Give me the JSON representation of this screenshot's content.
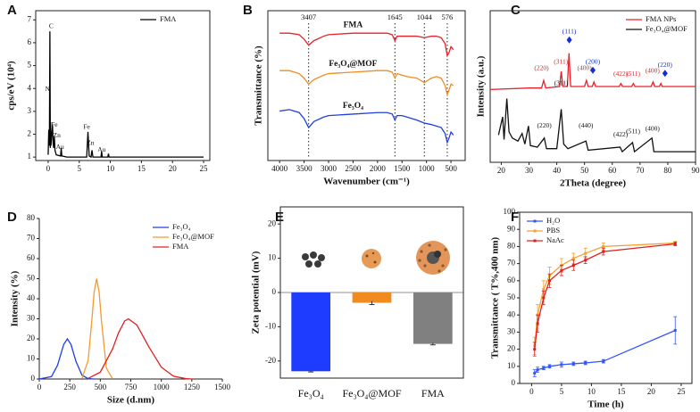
{
  "chart_data": [
    {
      "panel": "A",
      "type": "line",
      "ylabel": "cps/eV (10⁴)",
      "xlim": [
        -2,
        26
      ],
      "ylim": [
        0.85,
        7.4
      ],
      "xticks": [
        0,
        5,
        10,
        15,
        20,
        25
      ],
      "yticks": [
        1,
        2,
        3,
        4,
        5,
        6,
        7
      ],
      "legend": "upper right",
      "series": [
        {
          "name": "FMA",
          "color": "#000000",
          "x": [
            0,
            0.1,
            0.2,
            0.28,
            0.35,
            0.39,
            0.45,
            0.55,
            0.7,
            0.8,
            0.9,
            1.0,
            1.1,
            1.3,
            2.0,
            2.1,
            2.2,
            3,
            6.2,
            6.4,
            6.6,
            6.9,
            7.05,
            7.2,
            8.5,
            8.6,
            8.7,
            9.6,
            9.7,
            9.8,
            25
          ],
          "values": [
            1.1,
            2.2,
            1.5,
            6.5,
            1.4,
            2.5,
            1.5,
            1.9,
            2.4,
            1.6,
            1.4,
            1.9,
            1.3,
            1.1,
            1.05,
            1.4,
            1.05,
            1,
            1,
            2.1,
            1.05,
            1,
            1.3,
            1,
            1,
            1.25,
            1,
            1,
            1.15,
            1,
            1
          ]
        }
      ],
      "annotations": [
        {
          "text": "C",
          "x": 0.5,
          "y": 6.7
        },
        {
          "text": "N",
          "x": -0.1,
          "y": 3.96
        },
        {
          "text": "Fe",
          "x": 1.0,
          "y": 2.4
        },
        {
          "text": "Zn",
          "x": 1.4,
          "y": 1.93
        },
        {
          "text": "Au",
          "x": 1.9,
          "y": 1.43
        },
        {
          "text": "Fe",
          "x": 6.2,
          "y": 2.3
        },
        {
          "text": "Zn",
          "x": 6.8,
          "y": 1.6
        },
        {
          "text": "Au",
          "x": 8.6,
          "y": 1.3
        }
      ]
    },
    {
      "panel": "B",
      "type": "line",
      "xlabel": "Wavenumber (cm⁻¹)",
      "ylabel": "Transmittance (%)",
      "xlim": [
        4240,
        210
      ],
      "ylim": [
        0,
        100
      ],
      "xticks": [
        4000,
        3500,
        3000,
        2500,
        2000,
        1500,
        1000,
        500
      ],
      "legend": "inline",
      "vlines": [
        3407,
        1645,
        1044,
        576
      ],
      "series": [
        {
          "name": "FMA",
          "color": "#e8202a",
          "x": [
            4000,
            3800,
            3600,
            3500,
            3407,
            3300,
            3100,
            3000,
            2500,
            2000,
            1800,
            1700,
            1645,
            1600,
            1500,
            1400,
            1200,
            1044,
            900,
            800,
            700,
            620,
            576,
            540,
            500,
            450
          ],
          "values": [
            85,
            85,
            84,
            81,
            77,
            80,
            83,
            84,
            85,
            85,
            85,
            84,
            80,
            83,
            83,
            83,
            83,
            82,
            83,
            83,
            82,
            78,
            70,
            72,
            76,
            74
          ]
        },
        {
          "name": "Fe₃O₄@MOF",
          "color": "#f08c1e",
          "x": [
            4000,
            3800,
            3600,
            3500,
            3407,
            3300,
            3100,
            3000,
            2500,
            2000,
            1800,
            1700,
            1645,
            1600,
            1500,
            1400,
            1200,
            1044,
            900,
            800,
            700,
            620,
            576,
            540,
            500,
            450
          ],
          "values": [
            60,
            60,
            58,
            55,
            51,
            54,
            57,
            58,
            59,
            60,
            60,
            59,
            55,
            58,
            57,
            56,
            55,
            52,
            55,
            56,
            55,
            50,
            44,
            47,
            51,
            50
          ]
        },
        {
          "name": "Fe₃O₄",
          "color": "#2040e0",
          "x": [
            4000,
            3800,
            3600,
            3500,
            3407,
            3300,
            3100,
            3000,
            2500,
            2000,
            1800,
            1700,
            1645,
            1600,
            1500,
            1400,
            1200,
            1044,
            900,
            800,
            700,
            620,
            576,
            540,
            500,
            450
          ],
          "values": [
            33,
            34,
            32,
            28,
            22,
            26,
            29,
            30,
            31,
            32,
            32,
            31,
            27,
            30,
            30,
            29,
            27,
            25,
            24,
            23,
            22,
            18,
            12,
            15,
            19,
            17
          ]
        }
      ]
    },
    {
      "panel": "C",
      "type": "line",
      "xlabel": "2Theta (degree)",
      "ylabel": "Intensity (a.u.)",
      "xlim": [
        16,
        90
      ],
      "ylim": [
        0,
        100
      ],
      "xticks": [
        20,
        30,
        40,
        50,
        60,
        70,
        80,
        90
      ],
      "legend": "upper right",
      "series": [
        {
          "name": "FMA NPs",
          "color": "#e8202a",
          "x": [
            16,
            30,
            34.5,
            35.3,
            36,
            41,
            41.6,
            42.2,
            43.8,
            44.4,
            45,
            50,
            50.7,
            51.3,
            52.8,
            53.4,
            54,
            62.5,
            63.1,
            63.7,
            67,
            67.6,
            68.2,
            74,
            74.7,
            75.3,
            77,
            77.5,
            78,
            90
          ],
          "values": [
            48,
            49,
            49,
            54,
            49,
            50,
            60,
            50,
            50,
            72,
            50,
            50,
            54,
            50,
            50,
            53,
            50,
            50,
            52,
            50,
            50,
            52,
            50,
            50,
            53,
            50,
            50,
            52,
            50,
            50
          ]
        },
        {
          "name": "Fe₃O₄@MOF",
          "color": "#111111",
          "x": [
            19,
            20.5,
            21,
            22,
            22.8,
            24,
            26,
            27.5,
            28.5,
            29.8,
            30.5,
            33,
            35.5,
            36.3,
            40,
            41.6,
            42.5,
            44,
            50.5,
            51.3,
            62.8,
            63.6,
            67.3,
            68,
            74.3,
            75,
            80,
            90
          ],
          "values": [
            18,
            30,
            15,
            42,
            20,
            16,
            14,
            19,
            12,
            24,
            11,
            10,
            16,
            9,
            9,
            35,
            12,
            9,
            14,
            8,
            10,
            7,
            13,
            7,
            16,
            7,
            7,
            7
          ]
        }
      ],
      "annotations": [
        {
          "text": "(220)",
          "x": 34.5,
          "y": 62,
          "color": "#e8202a"
        },
        {
          "text": "(311)",
          "x": 41.5,
          "y": 66,
          "color": "#e8202a"
        },
        {
          "text": "(111)",
          "x": 44.5,
          "y": 86,
          "color": "#1030d0",
          "marker": "diamond"
        },
        {
          "text": "(400)",
          "x": 50,
          "y": 62,
          "color": "#e8202a"
        },
        {
          "text": "(200)",
          "x": 53,
          "y": 66,
          "color": "#1030d0",
          "marker": "diamond"
        },
        {
          "text": "(422)",
          "x": 63,
          "y": 58,
          "color": "#e8202a"
        },
        {
          "text": "(511)",
          "x": 67.5,
          "y": 58,
          "color": "#e8202a"
        },
        {
          "text": "(400)",
          "x": 74.5,
          "y": 60,
          "color": "#e8202a"
        },
        {
          "text": "(220)",
          "x": 79,
          "y": 64,
          "color": "#1030d0",
          "marker": "diamond"
        },
        {
          "text": "(220)",
          "x": 35.5,
          "y": 24,
          "color": "#111111"
        },
        {
          "text": "(311)",
          "x": 41.6,
          "y": 52,
          "color": "#111111"
        },
        {
          "text": "(440)",
          "x": 50.5,
          "y": 24,
          "color": "#111111"
        },
        {
          "text": "(422)",
          "x": 63,
          "y": 18,
          "color": "#111111"
        },
        {
          "text": "(511)",
          "x": 67.5,
          "y": 20,
          "color": "#111111"
        },
        {
          "text": "(400)",
          "x": 74.5,
          "y": 22,
          "color": "#111111"
        }
      ]
    },
    {
      "panel": "D",
      "type": "line",
      "xlabel": "Size (d.nm)",
      "ylabel": "Intensity (%)",
      "xlim": [
        0,
        1500
      ],
      "ylim": [
        0,
        80
      ],
      "xticks": [
        0,
        250,
        500,
        750,
        1000,
        1250,
        1500
      ],
      "yticks": [
        0,
        10,
        20,
        30,
        40,
        50,
        60,
        70,
        80
      ],
      "legend": "upper right",
      "series": [
        {
          "name": "Fe₃O₄",
          "color": "#2040e0",
          "x": [
            0,
            100,
            150,
            200,
            230,
            260,
            300,
            350,
            400,
            450
          ],
          "values": [
            0,
            1.2,
            6.9,
            17.2,
            20,
            17.2,
            8.9,
            1.9,
            0.2,
            0
          ]
        },
        {
          "name": "Fe₃O₄@MOF",
          "color": "#f39b2b",
          "x": [
            350,
            400,
            430,
            450,
            470,
            490,
            510,
            550,
            600
          ],
          "values": [
            0.3,
            9.2,
            28.7,
            43.5,
            50,
            43.5,
            28.7,
            5.4,
            0.1
          ]
        },
        {
          "name": "FMA",
          "color": "#e02020",
          "x": [
            400,
            500,
            600,
            650,
            700,
            730,
            800,
            900,
            1000,
            1100,
            1200,
            1250
          ],
          "values": [
            0.3,
            3.4,
            14.9,
            23.1,
            28.9,
            30,
            26.9,
            15.8,
            5.9,
            1.4,
            0.2,
            0
          ]
        }
      ]
    },
    {
      "panel": "E",
      "type": "bar",
      "ylabel": "Zeta  potential (mV)",
      "categories": [
        "Fe₃O₄",
        "Fe₃O₄@MOF",
        "FMA"
      ],
      "values": [
        -23,
        -3,
        -15
      ],
      "errors": [
        0.2,
        0.5,
        0.3
      ],
      "colors": [
        "#1e3cff",
        "#f08c1e",
        "#808080"
      ],
      "ylim": [
        -25,
        25
      ],
      "yticks": [
        -20,
        -10,
        0,
        10,
        20
      ]
    },
    {
      "panel": "F",
      "type": "line",
      "xlabel": "Time (h)",
      "ylabel": "Transmittance ( T%,400 nm)",
      "xlim": [
        -2,
        26.8
      ],
      "ylim": [
        0,
        100
      ],
      "xticks": [
        0,
        5,
        10,
        15,
        20,
        25
      ],
      "yticks": [
        0,
        10,
        20,
        30,
        40,
        50,
        60,
        70,
        80,
        90,
        100
      ],
      "legend": "upper left",
      "markers": true,
      "series": [
        {
          "name": "H₂O",
          "color": "#3355ff",
          "x": [
            0.5,
            1,
            2,
            3,
            5,
            7,
            9,
            12,
            24
          ],
          "values": [
            6,
            8,
            9,
            10,
            11,
            11.5,
            12,
            13,
            31
          ],
          "errors": [
            2,
            1.5,
            1,
            1,
            1.5,
            1,
            1,
            1,
            8
          ]
        },
        {
          "name": "PBS",
          "color": "#f5a030",
          "x": [
            0.5,
            1,
            2,
            3,
            5,
            7,
            9,
            12,
            24
          ],
          "values": [
            22,
            40,
            55,
            63,
            69,
            73,
            76,
            80,
            82
          ],
          "errors": [
            5,
            6,
            5,
            5,
            4,
            3,
            3,
            2,
            1
          ]
        },
        {
          "name": "NaAc",
          "color": "#e02020",
          "x": [
            0.5,
            1,
            2,
            3,
            5,
            7,
            9,
            12,
            24
          ],
          "values": [
            20,
            35,
            50,
            60,
            66,
            69,
            72,
            77,
            81.5
          ],
          "errors": [
            4,
            5,
            4,
            4,
            3,
            3,
            2,
            2,
            1
          ]
        }
      ]
    }
  ]
}
